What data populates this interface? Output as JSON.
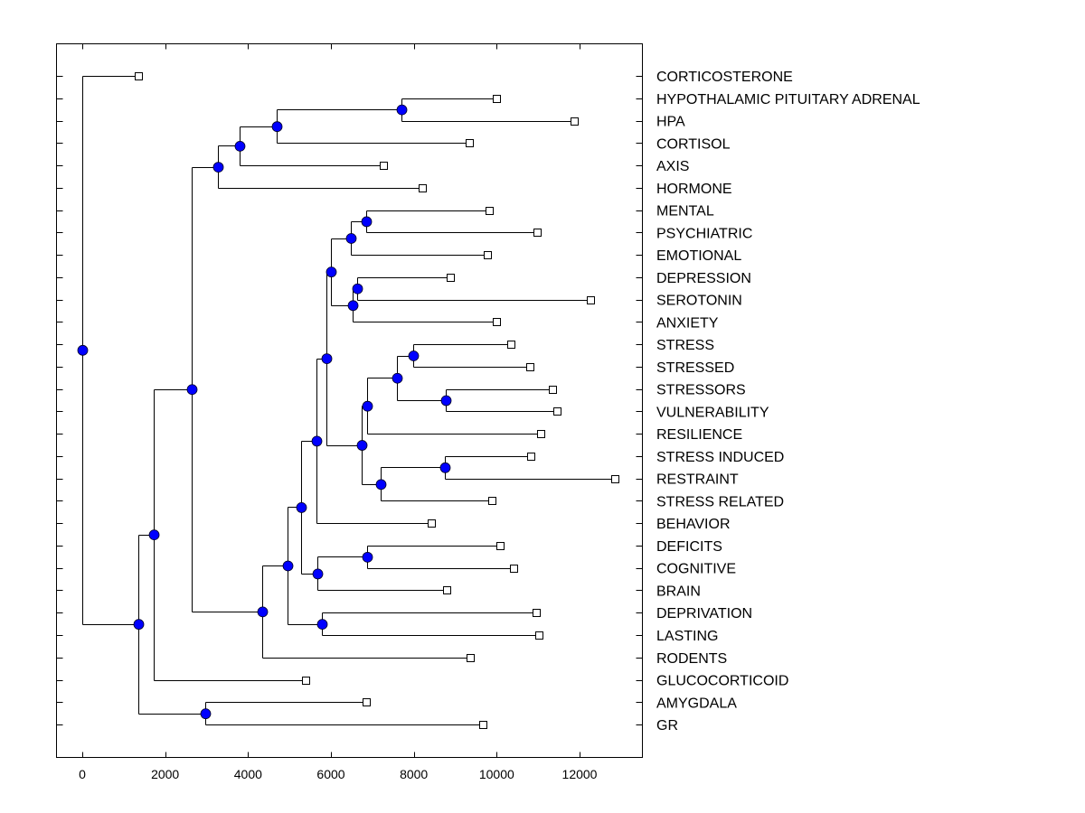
{
  "chart_data": {
    "type": "dendrogram",
    "title": "",
    "xlabel": "",
    "ylabel": "",
    "xlim": [
      -600,
      13500
    ],
    "xticks": [
      0,
      2000,
      4000,
      6000,
      8000,
      10000,
      12000
    ],
    "xtick_labels": [
      "0",
      "2000",
      "4000",
      "6000",
      "8000",
      "10000",
      "12000"
    ],
    "grid": false,
    "node_color": "#0000FF",
    "leaves": [
      {
        "id": "L0",
        "label": "CORTICOSTERONE",
        "x": 1353
      },
      {
        "id": "L1",
        "label": "HYPOTHALAMIC PITUITARY ADRENAL",
        "x": 9993
      },
      {
        "id": "L2",
        "label": "HPA",
        "x": 11869
      },
      {
        "id": "L3",
        "label": "CORTISOL",
        "x": 9338
      },
      {
        "id": "L4",
        "label": "AXIS",
        "x": 7265
      },
      {
        "id": "L5",
        "label": "HORMONE",
        "x": 8204
      },
      {
        "id": "L6",
        "label": "MENTAL",
        "x": 9818
      },
      {
        "id": "L7",
        "label": "PSYCHIATRIC",
        "x": 10975
      },
      {
        "id": "L8",
        "label": "EMOTIONAL",
        "x": 9775
      },
      {
        "id": "L9",
        "label": "DEPRESSION",
        "x": 8880
      },
      {
        "id": "L10",
        "label": "SEROTONIN",
        "x": 12262
      },
      {
        "id": "L11",
        "label": "ANXIETY",
        "x": 9993
      },
      {
        "id": "L12",
        "label": "STRESS",
        "x": 10342
      },
      {
        "id": "L13",
        "label": "STRESSED",
        "x": 10800
      },
      {
        "id": "L14",
        "label": "STRESSORS",
        "x": 11345
      },
      {
        "id": "L15",
        "label": "VULNERABILITY",
        "x": 11455
      },
      {
        "id": "L16",
        "label": "RESILIENCE",
        "x": 11062
      },
      {
        "id": "L17",
        "label": "STRESS INDUCED",
        "x": 10822
      },
      {
        "id": "L18",
        "label": "RESTRAINT",
        "x": 12851
      },
      {
        "id": "L19",
        "label": "STRESS RELATED",
        "x": 9884
      },
      {
        "id": "L20",
        "label": "BEHAVIOR",
        "x": 8422
      },
      {
        "id": "L21",
        "label": "DEFICITS",
        "x": 10080
      },
      {
        "id": "L22",
        "label": "COGNITIVE",
        "x": 10407
      },
      {
        "id": "L23",
        "label": "BRAIN",
        "x": 8793
      },
      {
        "id": "L24",
        "label": "DEPRIVATION",
        "x": 10953
      },
      {
        "id": "L25",
        "label": "LASTING",
        "x": 11018
      },
      {
        "id": "L26",
        "label": "RODENTS",
        "x": 9360
      },
      {
        "id": "L27",
        "label": "GLUCOCORTICOID",
        "x": 5389
      },
      {
        "id": "L28",
        "label": "AMYGDALA",
        "x": 6851
      },
      {
        "id": "L29",
        "label": "GR",
        "x": 9665
      }
    ],
    "nodes": [
      {
        "id": "n_hpa",
        "x": 7702,
        "children": [
          "L1",
          "L2"
        ]
      },
      {
        "id": "n_cort",
        "x": 4691,
        "children": [
          "n_hpa",
          "L3"
        ]
      },
      {
        "id": "n_axis",
        "x": 3796,
        "children": [
          "n_cort",
          "L4"
        ]
      },
      {
        "id": "n_horm",
        "x": 3273,
        "children": [
          "n_axis",
          "L5"
        ]
      },
      {
        "id": "n_ment",
        "x": 6851,
        "children": [
          "L6",
          "L7"
        ]
      },
      {
        "id": "n_emo",
        "x": 6480,
        "children": [
          "n_ment",
          "L8"
        ]
      },
      {
        "id": "n_dep",
        "x": 6633,
        "children": [
          "L9",
          "L10"
        ]
      },
      {
        "id": "n_anx",
        "x": 6524,
        "children": [
          "n_dep",
          "L11"
        ]
      },
      {
        "id": "n_mood",
        "x": 6000,
        "children": [
          "n_emo",
          "n_anx"
        ]
      },
      {
        "id": "n_st",
        "x": 7985,
        "children": [
          "L12",
          "L13"
        ]
      },
      {
        "id": "n_sv",
        "x": 8771,
        "children": [
          "L14",
          "L15"
        ]
      },
      {
        "id": "n_st2",
        "x": 7593,
        "children": [
          "n_st",
          "n_sv"
        ]
      },
      {
        "id": "n_res",
        "x": 6873,
        "children": [
          "n_st2",
          "L16"
        ]
      },
      {
        "id": "n_si",
        "x": 8749,
        "children": [
          "L17",
          "L18"
        ]
      },
      {
        "id": "n_sr",
        "x": 7200,
        "children": [
          "n_si",
          "L19"
        ]
      },
      {
        "id": "n_stress",
        "x": 6742,
        "children": [
          "n_res",
          "n_sr"
        ]
      },
      {
        "id": "n_mid",
        "x": 5891,
        "children": [
          "n_mood",
          "n_stress"
        ]
      },
      {
        "id": "n_beh",
        "x": 5651,
        "children": [
          "n_mid",
          "L20"
        ]
      },
      {
        "id": "n_def",
        "x": 6873,
        "children": [
          "L21",
          "L22"
        ]
      },
      {
        "id": "n_brain",
        "x": 5673,
        "children": [
          "n_def",
          "L23"
        ]
      },
      {
        "id": "n_bb",
        "x": 5280,
        "children": [
          "n_beh",
          "n_brain"
        ]
      },
      {
        "id": "n_dl",
        "x": 5782,
        "children": [
          "L24",
          "L25"
        ]
      },
      {
        "id": "n_cog",
        "x": 4953,
        "children": [
          "n_bb",
          "n_dl"
        ]
      },
      {
        "id": "n_rod",
        "x": 4342,
        "children": [
          "n_cog",
          "L26"
        ]
      },
      {
        "id": "n_big",
        "x": 2640,
        "children": [
          "n_horm",
          "n_rod"
        ]
      },
      {
        "id": "n_glu",
        "x": 1724,
        "children": [
          "n_big",
          "L27"
        ]
      },
      {
        "id": "n_amy",
        "x": 2967,
        "children": [
          "L28",
          "L29"
        ]
      },
      {
        "id": "n_lower",
        "x": 1353,
        "children": [
          "n_glu",
          "n_amy"
        ]
      },
      {
        "id": "root",
        "x": 0,
        "children": [
          "L0",
          "n_lower"
        ]
      }
    ]
  }
}
